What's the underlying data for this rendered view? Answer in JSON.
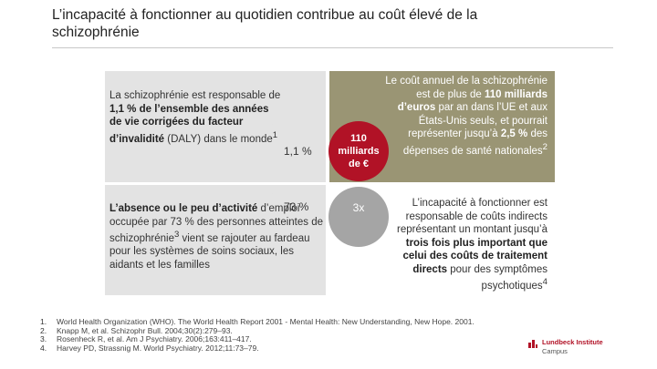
{
  "slide": {
    "title_line1": "L’incapacité à fonctionner au quotidien contribue au coût élevé de la",
    "title_line2": "schizophrénie"
  },
  "quadrants": {
    "top_left": {
      "pre": "La schizophrénie est responsable de ",
      "bold": "1,1 % de l’ensemble des années de vie corrigées du facteur d’invalidité",
      "post": " (DALY) dans le monde",
      "sup": "1",
      "percent": "1,1 %"
    },
    "bottom_left": {
      "bold": "L’absence ou le peu d’activité",
      "post": " d’emploi occupée par 73 % des personnes atteintes de schizophrénie",
      "sup": "3",
      "post2": " vient se rajouter au fardeau pour les systèmes de soins sociaux, les aidants et les familles",
      "percent": "73 %"
    },
    "top_right": {
      "pre": "Le coût annuel de la schizophrénie est de plus de ",
      "bold": "110 milliards d’euros",
      "mid": " par an dans l’UE et aux États-Unis seuls, et pourrait représenter jusqu’à ",
      "bold2": "2,5 %",
      "post": " des dépenses de santé nationales",
      "sup": "2",
      "circle_line1": "110",
      "circle_line2": "milliards",
      "circle_line3": "de €"
    },
    "bottom_right": {
      "pre": "L’incapacité à fonctionner est responsable de coûts indirects représentant un montant jusqu’à ",
      "bold": "trois fois plus important que celui des coûts de traitement directs",
      "post": " pour des symptômes psychotiques",
      "sup": "4",
      "circle_label": "3x"
    }
  },
  "references": [
    {
      "num": "1.",
      "text": "World Health Organization (WHO). The World Health Report 2001 - Mental Health: New Understanding, New Hope. 2001."
    },
    {
      "num": "2.",
      "text": "Knapp M, et al. Schizophr Bull. 2004;30(2):279–93."
    },
    {
      "num": "3.",
      "text": "Rosenheck R, et al. Am J Psychiatry. 2006;163:411–417."
    },
    {
      "num": "4.",
      "text": "Harvey PD, Strassnig M. World Psychiatry. 2012;11:73–79."
    }
  ],
  "logo": {
    "name": "Lundbeck Institute",
    "sub": "Campus"
  },
  "colors": {
    "accent_red": "#b11226",
    "olive": "#9a9574",
    "light_grey": "#e3e3e3",
    "mid_grey": "#a5a5a5"
  }
}
